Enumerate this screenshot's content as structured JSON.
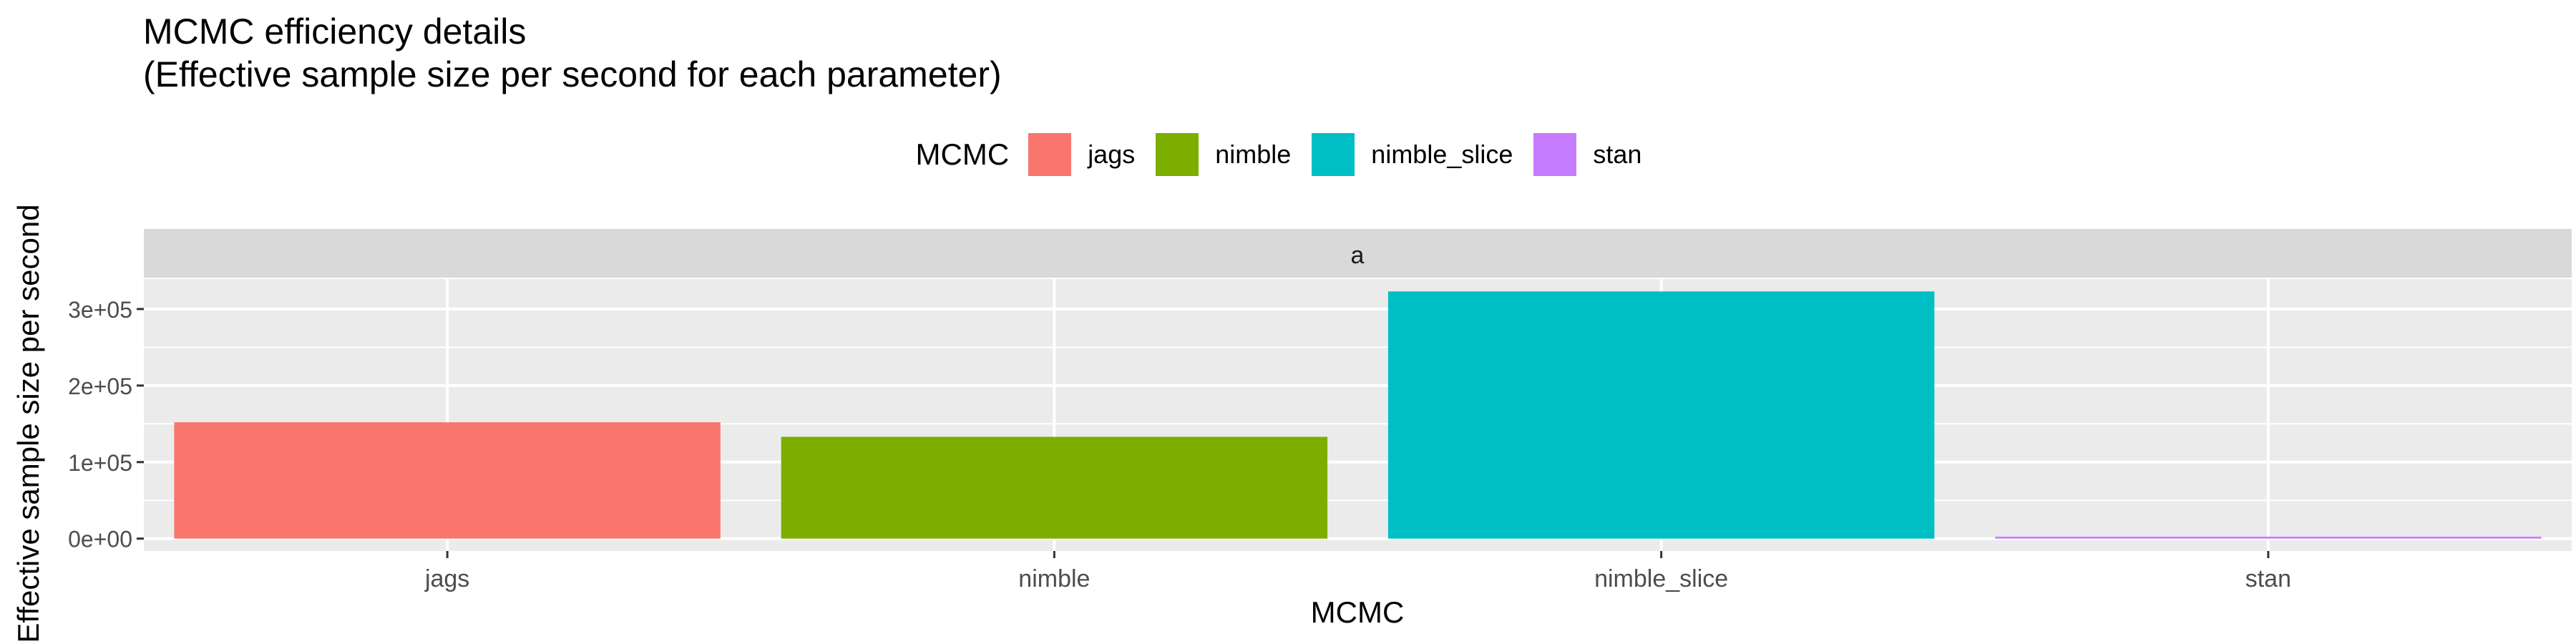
{
  "title": "MCMC efficiency details",
  "subtitle": "(Effective sample size per second for each parameter)",
  "legend": {
    "title": "MCMC",
    "position": "top",
    "items": [
      {
        "label": "jags",
        "color": "#F8766D"
      },
      {
        "label": "nimble",
        "color": "#7CAE00"
      },
      {
        "label": "nimble_slice",
        "color": "#00BFC4"
      },
      {
        "label": "stan",
        "color": "#C77CFF"
      }
    ]
  },
  "chart_data": {
    "type": "bar",
    "facet": "a",
    "categories": [
      "jags",
      "nimble",
      "nimble_slice",
      "stan"
    ],
    "values": [
      152000,
      133000,
      323000,
      2500
    ],
    "colors": [
      "#F8766D",
      "#7CAE00",
      "#00BFC4",
      "#C77CFF"
    ],
    "xlabel": "MCMC",
    "ylabel": "Effective sample size per second",
    "yticks": [
      0,
      100000,
      200000,
      300000
    ],
    "ytick_labels": [
      "0e+00",
      "1e+05",
      "2e+05",
      "3e+05"
    ],
    "ylim": [
      -16150,
      339150
    ],
    "grid": true
  }
}
